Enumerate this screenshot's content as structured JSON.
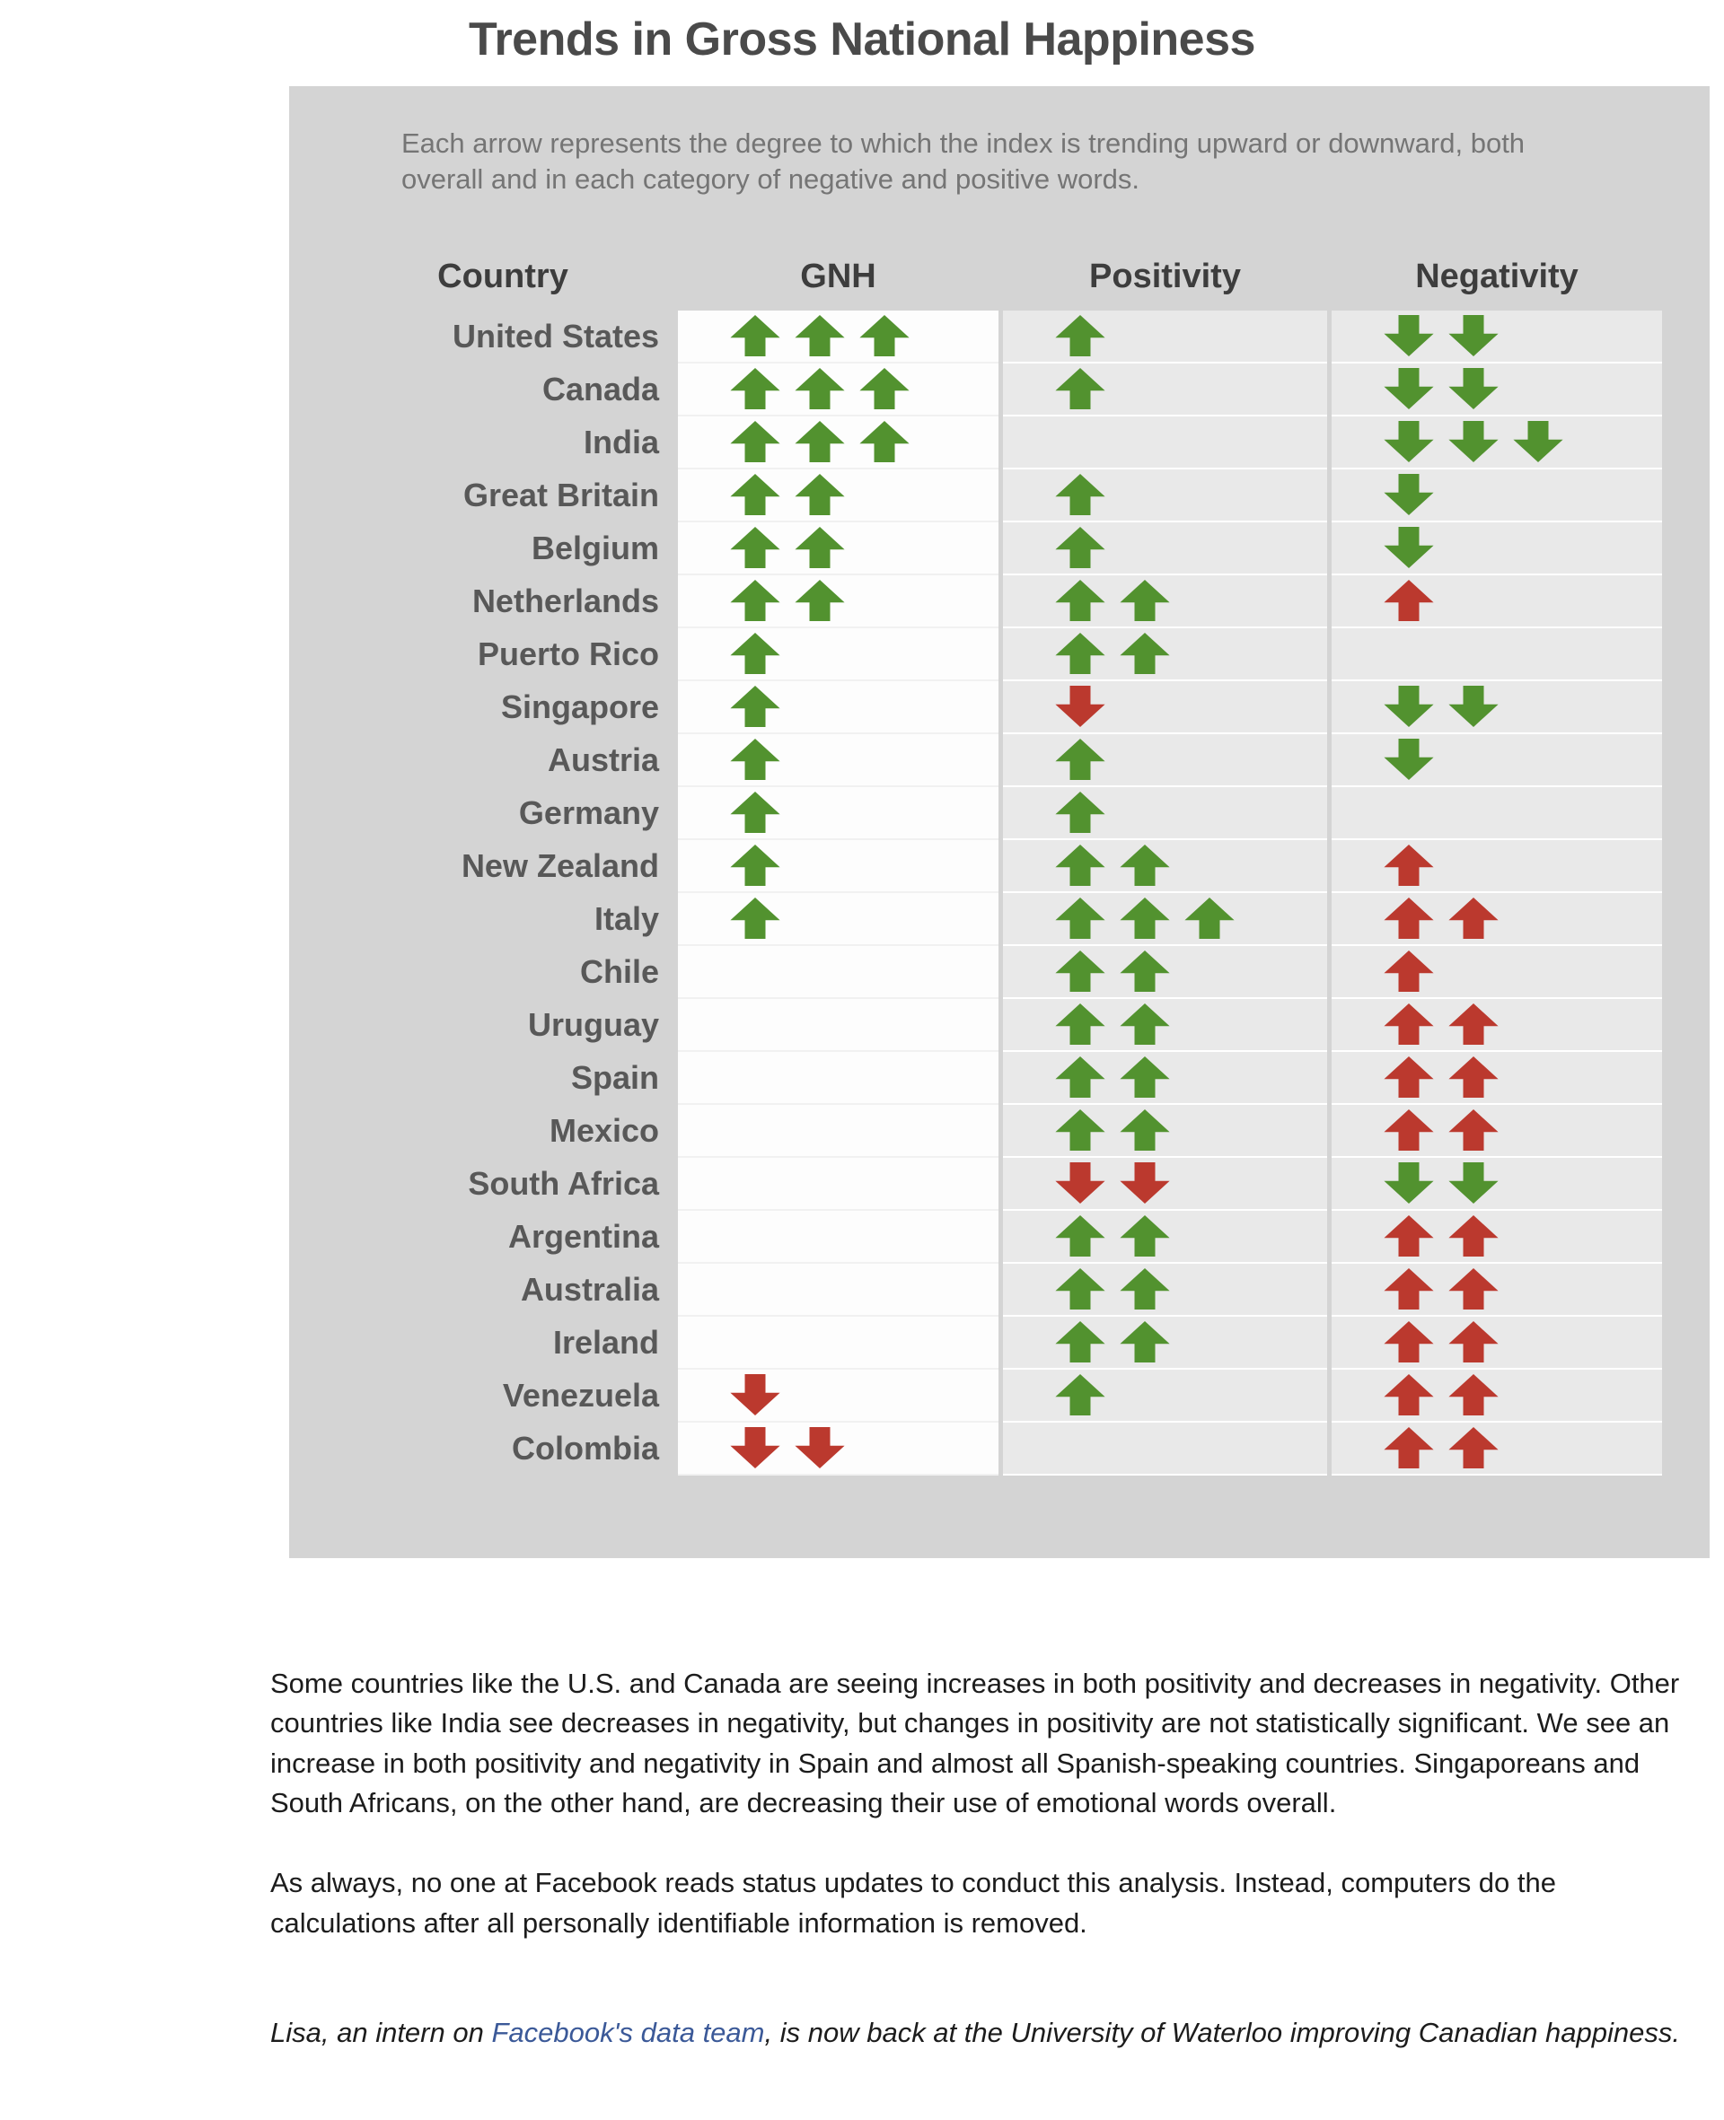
{
  "title": "Trends in Gross National Happiness",
  "subtitle": "Each arrow represents the degree to which the index is trending upward or downward, both overall and in each category of negative and positive words.",
  "colors": {
    "arrow_green": "#52922f",
    "arrow_red": "#bb392e",
    "panel_background": "#d4d4d4",
    "strip_gray": "#e9e9e9",
    "link_blue": "#3b5998"
  },
  "chart_data": {
    "type": "table",
    "title": "Trends in Gross National Happiness",
    "columns": [
      "Country",
      "GNH",
      "Positivity",
      "Negativity"
    ],
    "arrow_legend": {
      "up-green": "green arrow pointing up (index trending upward)",
      "down-green": "green arrow pointing down (index trending downward, favorable)",
      "up-red": "red arrow pointing up (index trending upward, unfavorable)",
      "down-red": "red arrow pointing down (index trending downward)"
    },
    "rows": [
      {
        "country": "United States",
        "gnh": [
          "up-green",
          "up-green",
          "up-green"
        ],
        "positivity": [
          "up-green"
        ],
        "negativity": [
          "down-green",
          "down-green"
        ]
      },
      {
        "country": "Canada",
        "gnh": [
          "up-green",
          "up-green",
          "up-green"
        ],
        "positivity": [
          "up-green"
        ],
        "negativity": [
          "down-green",
          "down-green"
        ]
      },
      {
        "country": "India",
        "gnh": [
          "up-green",
          "up-green",
          "up-green"
        ],
        "positivity": [],
        "negativity": [
          "down-green",
          "down-green",
          "down-green"
        ]
      },
      {
        "country": "Great Britain",
        "gnh": [
          "up-green",
          "up-green"
        ],
        "positivity": [
          "up-green"
        ],
        "negativity": [
          "down-green"
        ]
      },
      {
        "country": "Belgium",
        "gnh": [
          "up-green",
          "up-green"
        ],
        "positivity": [
          "up-green"
        ],
        "negativity": [
          "down-green"
        ]
      },
      {
        "country": "Netherlands",
        "gnh": [
          "up-green",
          "up-green"
        ],
        "positivity": [
          "up-green",
          "up-green"
        ],
        "negativity": [
          "up-red"
        ]
      },
      {
        "country": "Puerto Rico",
        "gnh": [
          "up-green"
        ],
        "positivity": [
          "up-green",
          "up-green"
        ],
        "negativity": []
      },
      {
        "country": "Singapore",
        "gnh": [
          "up-green"
        ],
        "positivity": [
          "down-red"
        ],
        "negativity": [
          "down-green",
          "down-green"
        ]
      },
      {
        "country": "Austria",
        "gnh": [
          "up-green"
        ],
        "positivity": [
          "up-green"
        ],
        "negativity": [
          "down-green"
        ]
      },
      {
        "country": "Germany",
        "gnh": [
          "up-green"
        ],
        "positivity": [
          "up-green"
        ],
        "negativity": []
      },
      {
        "country": "New Zealand",
        "gnh": [
          "up-green"
        ],
        "positivity": [
          "up-green",
          "up-green"
        ],
        "negativity": [
          "up-red"
        ]
      },
      {
        "country": "Italy",
        "gnh": [
          "up-green"
        ],
        "positivity": [
          "up-green",
          "up-green",
          "up-green"
        ],
        "negativity": [
          "up-red",
          "up-red"
        ]
      },
      {
        "country": "Chile",
        "gnh": [],
        "positivity": [
          "up-green",
          "up-green"
        ],
        "negativity": [
          "up-red"
        ]
      },
      {
        "country": "Uruguay",
        "gnh": [],
        "positivity": [
          "up-green",
          "up-green"
        ],
        "negativity": [
          "up-red",
          "up-red"
        ]
      },
      {
        "country": "Spain",
        "gnh": [],
        "positivity": [
          "up-green",
          "up-green"
        ],
        "negativity": [
          "up-red",
          "up-red"
        ]
      },
      {
        "country": "Mexico",
        "gnh": [],
        "positivity": [
          "up-green",
          "up-green"
        ],
        "negativity": [
          "up-red",
          "up-red"
        ]
      },
      {
        "country": "South Africa",
        "gnh": [],
        "positivity": [
          "down-red",
          "down-red"
        ],
        "negativity": [
          "down-green",
          "down-green"
        ]
      },
      {
        "country": "Argentina",
        "gnh": [],
        "positivity": [
          "up-green",
          "up-green"
        ],
        "negativity": [
          "up-red",
          "up-red"
        ]
      },
      {
        "country": "Australia",
        "gnh": [],
        "positivity": [
          "up-green",
          "up-green"
        ],
        "negativity": [
          "up-red",
          "up-red"
        ]
      },
      {
        "country": "Ireland",
        "gnh": [],
        "positivity": [
          "up-green",
          "up-green"
        ],
        "negativity": [
          "up-red",
          "up-red"
        ]
      },
      {
        "country": "Venezuela",
        "gnh": [
          "down-red"
        ],
        "positivity": [
          "up-green"
        ],
        "negativity": [
          "up-red",
          "up-red"
        ]
      },
      {
        "country": "Colombia",
        "gnh": [
          "down-red",
          "down-red"
        ],
        "positivity": [],
        "negativity": [
          "up-red",
          "up-red"
        ]
      }
    ]
  },
  "paragraphs": [
    "Some countries like the U.S. and Canada are seeing increases in both positivity and decreases in negativity. Other countries like India see decreases in negativity, but changes in positivity are not statistically significant. We see an increase in both positivity and negativity in Spain and almost all Spanish-speaking countries. Singaporeans and South Africans, on the other hand, are decreasing their use of emotional words overall.",
    "As always, no one at Facebook reads status updates to conduct this analysis. Instead, computers do the calculations after all personally identifiable information is removed."
  ],
  "footer": {
    "before": "Lisa, an intern on ",
    "link_text": "Facebook's data team",
    "after": ", is now back at the University of Waterloo improving Canadian happiness."
  }
}
